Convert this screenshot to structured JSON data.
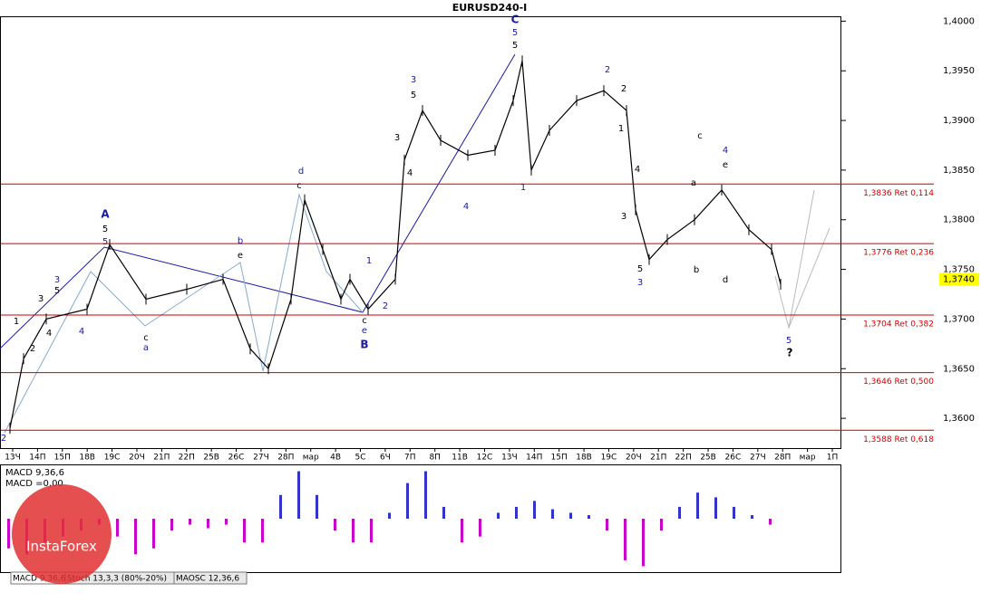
{
  "chart_data": {
    "type": "line",
    "title": "EURUSD240-I",
    "x": [
      1,
      4,
      9,
      18,
      23,
      31,
      40,
      48,
      54,
      58,
      63,
      66,
      70,
      74,
      76,
      80,
      86,
      88,
      92,
      96,
      102,
      108,
      112,
      114,
      116,
      120,
      126,
      132,
      137,
      139,
      142,
      146,
      152,
      158,
      164,
      169,
      171
    ],
    "series": [
      {
        "name": "EURUSD240-I",
        "color": "#000000",
        "values": [
          1.359,
          1.366,
          1.37,
          1.371,
          1.3775,
          1.372,
          1.373,
          1.374,
          1.367,
          1.365,
          1.372,
          1.382,
          1.377,
          1.372,
          1.374,
          1.371,
          1.374,
          1.386,
          1.391,
          1.388,
          1.3865,
          1.387,
          1.392,
          1.396,
          1.385,
          1.389,
          1.392,
          1.393,
          1.391,
          1.381,
          1.376,
          1.378,
          1.38,
          1.383,
          1.379,
          1.377,
          1.3735
        ]
      }
    ],
    "xlim": [
      -1,
      184
    ],
    "ylim": [
      1.357,
      1.4004
    ],
    "yticks": [
      {
        "value": 1.36,
        "label": "1,3600"
      },
      {
        "value": 1.365,
        "label": "1,3650"
      },
      {
        "value": 1.37,
        "label": "1,3700"
      },
      {
        "value": 1.375,
        "label": "1,3750"
      },
      {
        "value": 1.38,
        "label": "1,3800"
      },
      {
        "value": 1.385,
        "label": "1,3850"
      },
      {
        "value": 1.39,
        "label": "1,3900"
      },
      {
        "value": 1.395,
        "label": "1,3950"
      },
      {
        "value": 1.4,
        "label": "1,4000"
      }
    ],
    "current_price": {
      "value": 1.374,
      "label": "1,3740",
      "color": "#ffff00"
    },
    "levels_color": "#cc0000",
    "levels": [
      {
        "value": 1.3836,
        "label": "1,3836 Ret 0,114"
      },
      {
        "value": 1.3776,
        "label": "1,3776 Ret 0,236"
      },
      {
        "value": 1.3704,
        "label": "1,3704 Ret 0,382"
      },
      {
        "value": 1.3646,
        "label": "1,3646 Ret 0,500"
      },
      {
        "value": 1.3588,
        "label": "1,3588 Ret 0,618"
      }
    ],
    "categories": [
      "13Ч",
      "14П",
      "15П",
      "18В",
      "19С",
      "20Ч",
      "21П",
      "22П",
      "25В",
      "26С",
      "27Ч",
      "28П",
      "мар",
      "4В",
      "5С",
      "6Ч",
      "7П",
      "8П",
      "11В",
      "12С",
      "13Ч",
      "14П",
      "15П",
      "18В",
      "19С",
      "20Ч",
      "21П",
      "22П",
      "25В",
      "26С",
      "27Ч",
      "28П",
      "мар",
      "1П"
    ],
    "annotations": [
      {
        "text": "A",
        "color": "#1a1aa6"
      },
      {
        "text": "5",
        "color": "#000000"
      },
      {
        "text": "5",
        "color": "#1a1aa6"
      },
      {
        "text": "B",
        "color": "#1a1aa6"
      },
      {
        "text": "e",
        "color": "#1a1aa6"
      },
      {
        "text": "c",
        "color": "#000000"
      },
      {
        "text": "C",
        "color": "#1a1aa6"
      },
      {
        "text": "5",
        "color": "#1a1aa6"
      },
      {
        "text": "5",
        "color": "#000000"
      },
      {
        "text": "d",
        "color": "#1a1aa6"
      },
      {
        "text": "c",
        "color": "#000000"
      },
      {
        "text": "b",
        "color": "#1a1aa6"
      },
      {
        "text": "e",
        "color": "#000000"
      },
      {
        "text": "a",
        "color": "#1a1aa6"
      },
      {
        "text": "c",
        "color": "#000000"
      },
      {
        "text": "3",
        "color": "#1a1aa6"
      },
      {
        "text": "5",
        "color": "#000000"
      },
      {
        "text": "4",
        "color": "#1a1aa6"
      },
      {
        "text": "1",
        "color": "#000000"
      },
      {
        "text": "2",
        "color": "#000000"
      },
      {
        "text": "3",
        "color": "#000000"
      },
      {
        "text": "4",
        "color": "#000000"
      },
      {
        "text": "1",
        "color": "#1a1aa6"
      },
      {
        "text": "2",
        "color": "#1a1aa6"
      },
      {
        "text": "3",
        "color": "#1a1aa6"
      },
      {
        "text": "5",
        "color": "#000000"
      },
      {
        "text": "3",
        "color": "#000000"
      },
      {
        "text": "4",
        "color": "#000000"
      },
      {
        "text": "1",
        "color": "#1a1aa6"
      },
      {
        "text": "4",
        "color": "#1a1aa6"
      },
      {
        "text": "2",
        "color": "#1a1aa6"
      },
      {
        "text": "2",
        "color": "#000000"
      },
      {
        "text": "1",
        "color": "#000000"
      },
      {
        "text": "3",
        "color": "#000000"
      },
      {
        "text": "4",
        "color": "#000000"
      },
      {
        "text": "5",
        "color": "#000000"
      },
      {
        "text": "3",
        "color": "#1a1aa6"
      },
      {
        "text": "4",
        "color": "#1a1aa6"
      },
      {
        "text": "e",
        "color": "#000000"
      },
      {
        "text": "c",
        "color": "#000000"
      },
      {
        "text": "a",
        "color": "#000000"
      },
      {
        "text": "b",
        "color": "#000000"
      },
      {
        "text": "d",
        "color": "#000000"
      },
      {
        "text": "5",
        "color": "#1a1aa6"
      },
      {
        "text": "?",
        "color": "#000000"
      },
      {
        "text": "2",
        "color": "#1a1aa6"
      }
    ],
    "macd": {
      "title": "MACD 9,36,6",
      "value_text": "MACD =0,00",
      "ylim": [
        -0.0045,
        0.0045
      ],
      "pos_color": "#3333cc",
      "neg_color": "#cc00cc",
      "values": [
        -0.0025,
        -0.003,
        -0.002,
        -0.0015,
        -0.001,
        -0.0005,
        -0.0015,
        -0.003,
        -0.0025,
        -0.001,
        -0.0005,
        -0.0008,
        -0.0005,
        -0.002,
        -0.002,
        0.002,
        0.004,
        0.002,
        -0.001,
        -0.002,
        -0.002,
        0.0005,
        0.003,
        0.004,
        0.001,
        -0.002,
        -0.0015,
        0.0005,
        0.001,
        0.0015,
        0.0008,
        0.0005,
        0.0003,
        -0.001,
        -0.0035,
        -0.004,
        -0.001,
        0.001,
        0.0022,
        0.0018,
        0.001,
        0.0003,
        -0.0005
      ]
    },
    "tabs": [
      "MACD 9,36,6",
      "Stoch 13,3,3 (80%-20%)",
      "MAOSC 12,36,6"
    ],
    "watermark": "InstaForex"
  }
}
